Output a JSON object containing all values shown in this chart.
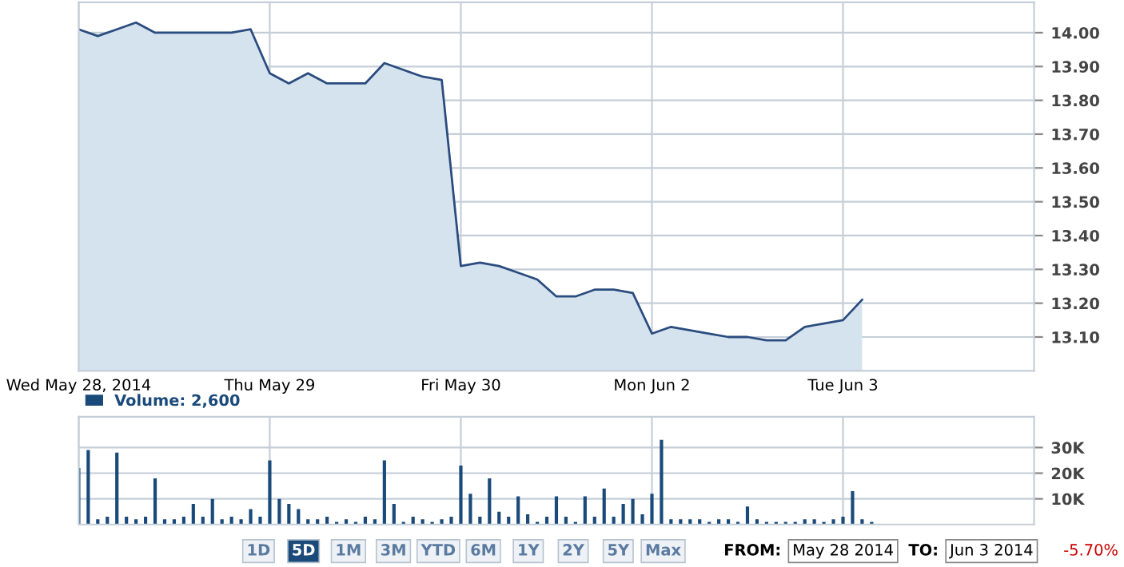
{
  "chart_data": [
    {
      "type": "area",
      "categories": [
        "Wed May 28, 2014",
        null,
        null,
        null,
        null,
        null,
        null,
        null,
        null,
        null,
        "Thu May 29",
        null,
        null,
        null,
        null,
        null,
        null,
        null,
        null,
        null,
        "Fri May 30",
        null,
        null,
        null,
        null,
        null,
        null,
        null,
        null,
        null,
        "Mon Jun 2",
        null,
        null,
        null,
        null,
        null,
        null,
        null,
        null,
        null,
        "Tue Jun 3",
        null,
        null,
        null,
        null,
        null,
        null,
        null,
        null,
        null,
        null
      ],
      "series": [
        {
          "color": "#2b4c7e",
          "values": [
            14.01,
            13.99,
            14.01,
            14.03,
            14.0,
            14.0,
            14.0,
            14.0,
            14.0,
            14.01,
            13.88,
            13.85,
            13.88,
            13.85,
            13.85,
            13.85,
            13.91,
            13.89,
            13.87,
            13.86,
            13.31,
            13.32,
            13.31,
            13.29,
            13.27,
            13.22,
            13.22,
            13.24,
            13.24,
            13.23,
            13.11,
            13.13,
            13.12,
            13.11,
            13.1,
            13.1,
            13.09,
            13.09,
            13.13,
            13.14,
            13.15,
            13.21,
            null,
            null,
            null,
            null,
            null,
            null,
            null,
            null,
            null
          ]
        }
      ],
      "ylim": [
        13.0,
        14.09
      ],
      "yticks": [
        {
          "value": 13.1,
          "label": "13.10"
        },
        {
          "value": 13.2,
          "label": "13.20"
        },
        {
          "value": 13.3,
          "label": "13.30"
        },
        {
          "value": 13.4,
          "label": "13.40"
        },
        {
          "value": 13.5,
          "label": "13.50"
        },
        {
          "value": 13.6,
          "label": "13.60"
        },
        {
          "value": 13.7,
          "label": "13.70"
        },
        {
          "value": 13.8,
          "label": "13.80"
        },
        {
          "value": 13.9,
          "label": "13.90"
        },
        {
          "value": 14.0,
          "label": "14.00"
        }
      ],
      "grid": true
    },
    {
      "type": "bar",
      "categories": [
        null,
        null,
        null,
        null,
        null,
        null,
        null,
        null,
        null,
        null,
        null,
        null,
        null,
        null,
        null,
        null,
        null,
        null,
        null,
        null,
        null,
        null,
        null,
        null,
        null,
        null,
        null,
        null,
        null,
        null,
        null,
        null,
        null,
        null,
        null,
        null,
        null,
        null,
        null,
        null,
        null,
        null,
        null,
        null,
        null,
        null,
        null,
        null,
        null,
        null,
        null,
        null,
        null,
        null,
        null,
        null,
        null,
        null,
        null,
        null,
        null,
        null,
        null,
        null,
        null,
        null,
        null,
        null,
        null,
        null,
        null,
        null,
        null,
        null,
        null,
        null,
        null,
        null,
        null,
        null,
        null,
        null,
        null,
        null,
        null,
        null,
        null,
        null,
        null,
        null,
        null,
        null,
        null,
        null,
        null,
        null,
        null,
        null,
        null,
        null,
        null
      ],
      "series": [
        {
          "name": "Volume: 2,600",
          "color": "#1a4a7a",
          "values": [
            22000,
            29000,
            2000,
            3000,
            28000,
            3000,
            2000,
            3000,
            18000,
            2000,
            2000,
            3000,
            8000,
            3000,
            10000,
            2000,
            3000,
            2000,
            6000,
            3000,
            25000,
            10000,
            8000,
            6000,
            2000,
            2000,
            3000,
            1000,
            2000,
            1000,
            3000,
            2000,
            25000,
            8000,
            1000,
            3000,
            2000,
            1000,
            2000,
            3000,
            23000,
            12000,
            3000,
            18000,
            5000,
            3000,
            11000,
            4000,
            1000,
            3000,
            11000,
            3000,
            1000,
            11000,
            3000,
            14000,
            3000,
            8000,
            10000,
            4000,
            12000,
            33000,
            2000,
            2000,
            2000,
            2000,
            1000,
            2000,
            2000,
            1000,
            7000,
            2000,
            1000,
            1000,
            1000,
            1000,
            2000,
            2000,
            1000,
            2000,
            3000,
            13000,
            2000,
            1000,
            null,
            null,
            null,
            null,
            null,
            null,
            null,
            null,
            null,
            null,
            null,
            null,
            null,
            null,
            null,
            null,
            null
          ]
        }
      ],
      "ylim": [
        0,
        42000
      ],
      "yticks": [
        {
          "value": 10000,
          "label": "10K"
        },
        {
          "value": 20000,
          "label": "20K"
        },
        {
          "value": 30000,
          "label": "30K"
        }
      ],
      "grid": true,
      "legend": "top left",
      "annotations": [
        "1D",
        "5D",
        "1M",
        "3M",
        "YTD",
        "6M",
        "1Y",
        "2Y",
        "5Y",
        "Max",
        "FROM:",
        "May 28 2014",
        "TO:",
        "Jun 3 2014",
        "-5.70%"
      ]
    }
  ]
}
